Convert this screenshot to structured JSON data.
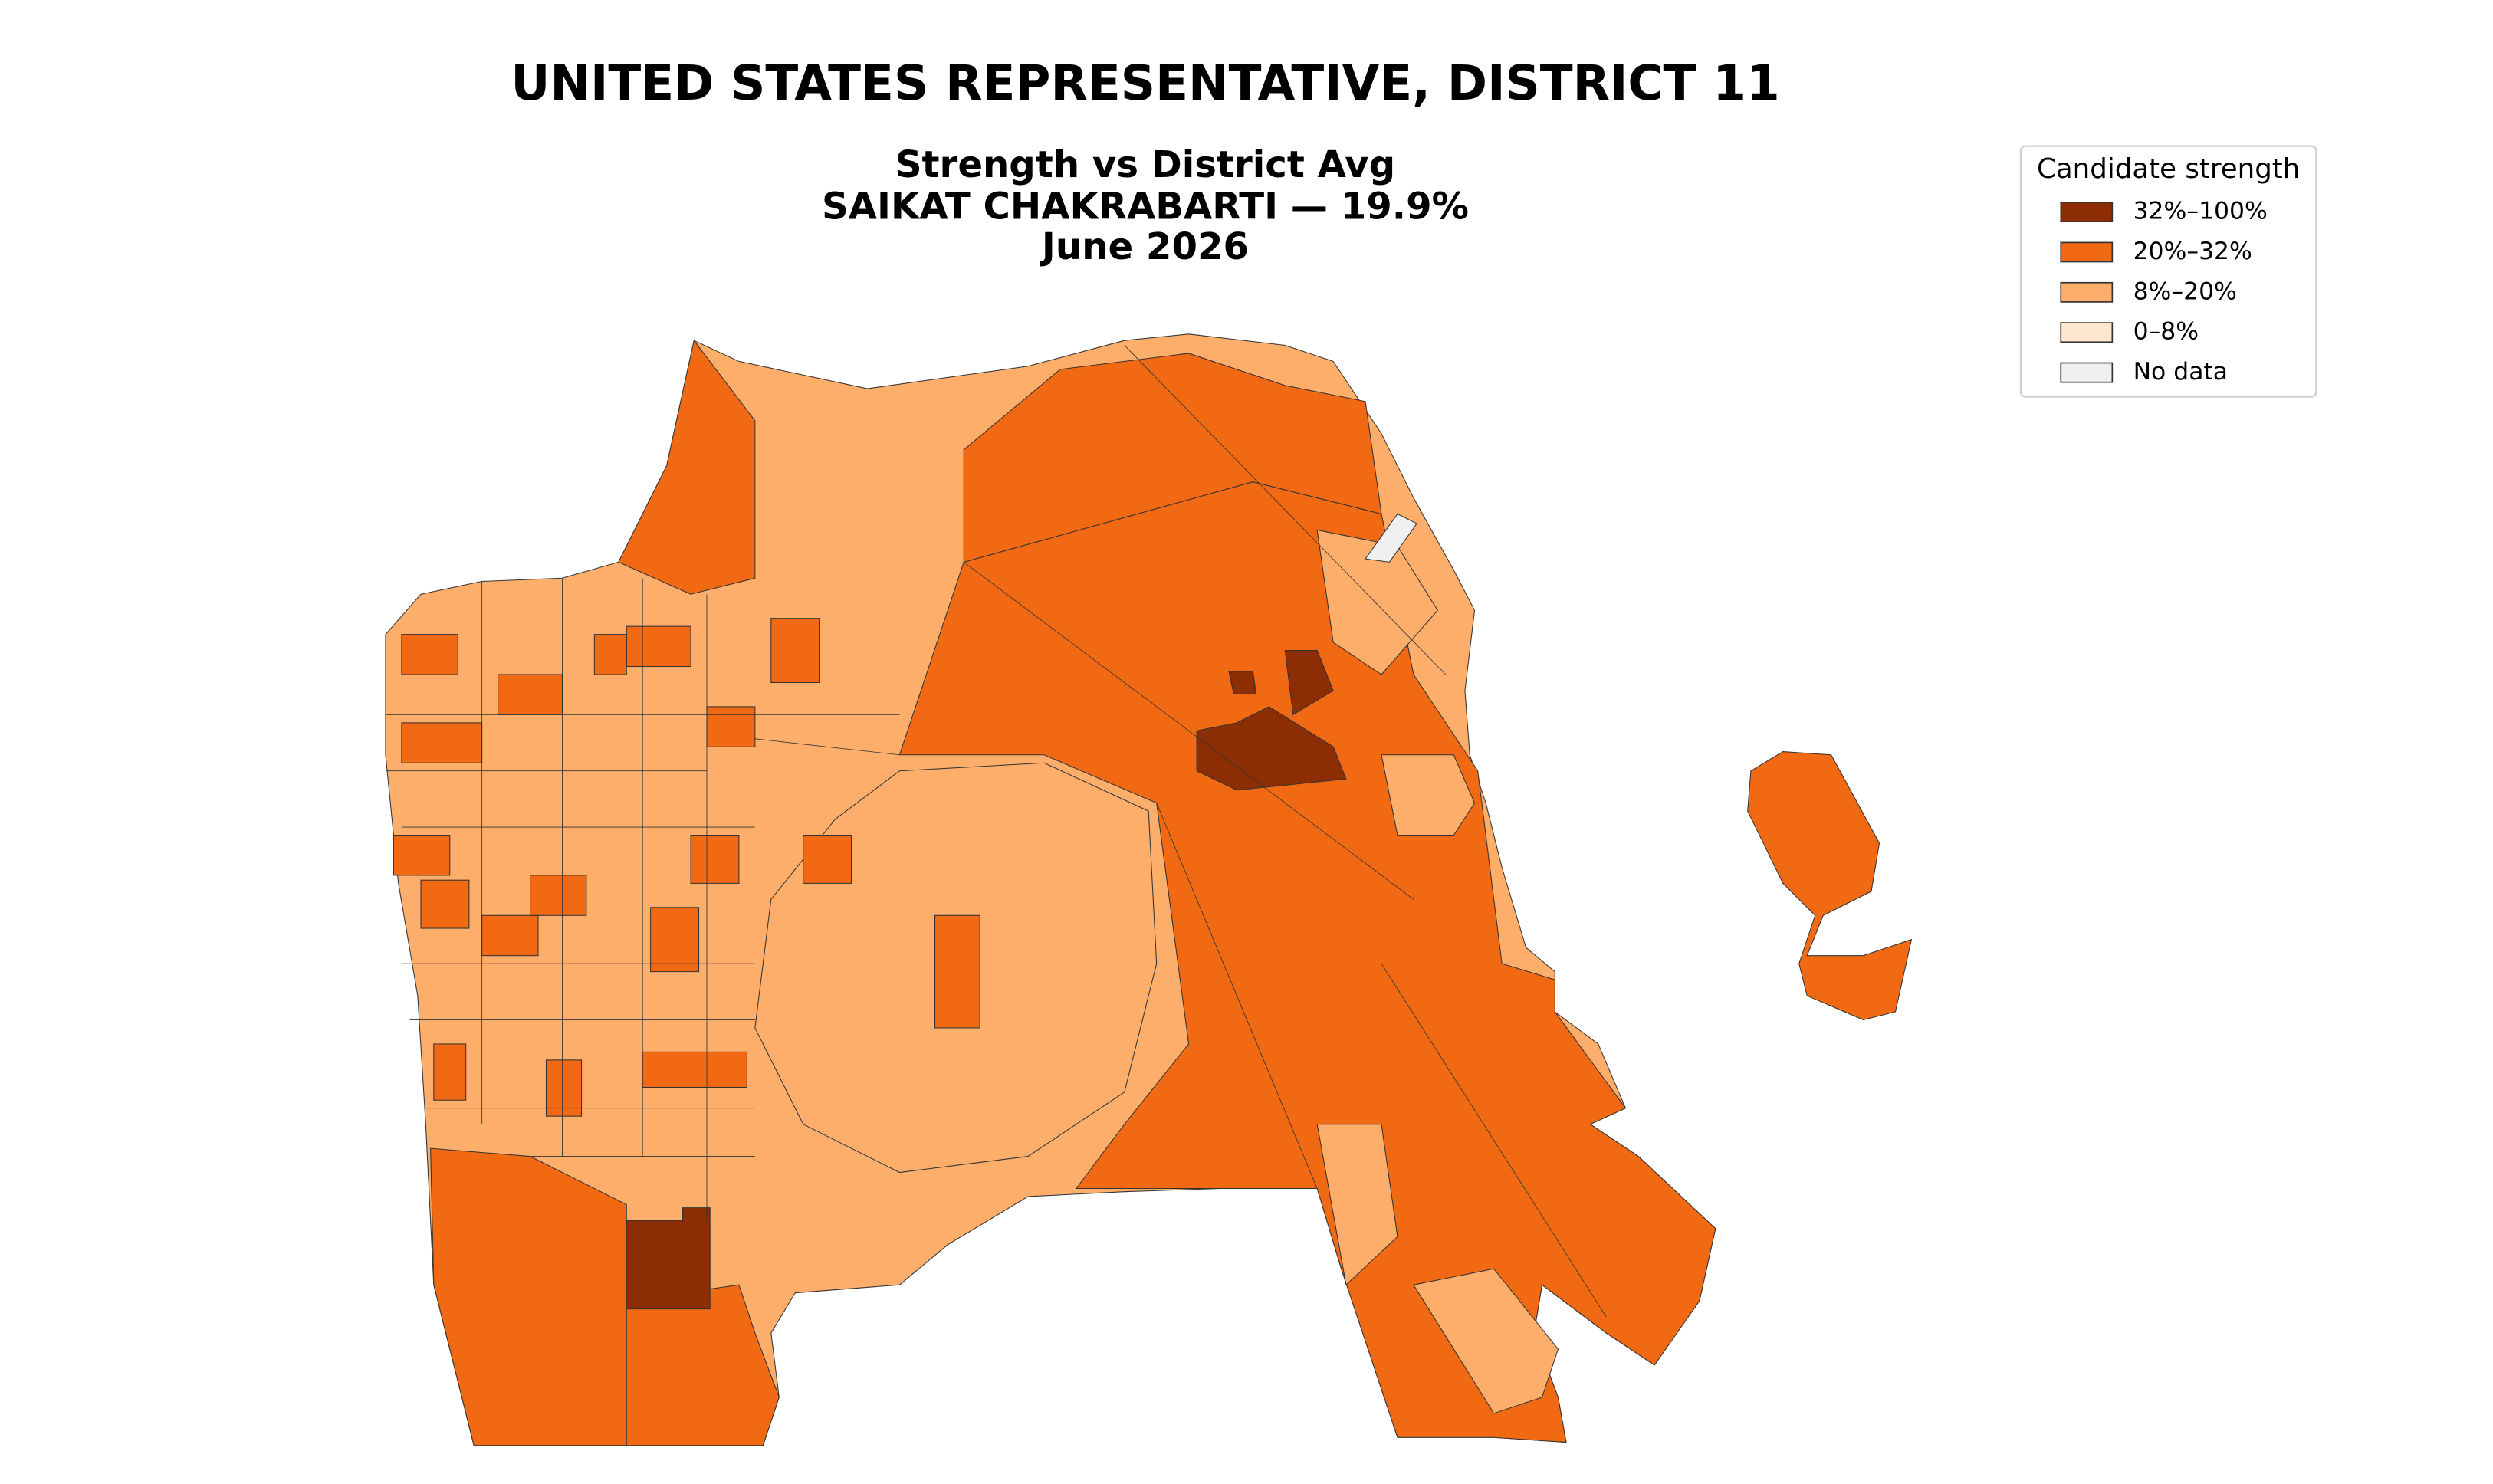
{
  "title": "UNITED STATES REPRESENTATIVE, DISTRICT 11",
  "subtitle": [
    "Strength vs District Avg",
    "SAIKAT CHAKRABARTI — 19.9%",
    "June 2026"
  ],
  "legend": {
    "title": "Candidate strength",
    "items": [
      {
        "label": "32%–100%",
        "color": "#8c2d04"
      },
      {
        "label": "20%–32%",
        "color": "#f16913"
      },
      {
        "label": "8%–20%",
        "color": "#fdae6b"
      },
      {
        "label": "0–8%",
        "color": "#fee6ce"
      },
      {
        "label": "No data",
        "color": "#f0f0f0"
      }
    ]
  }
}
